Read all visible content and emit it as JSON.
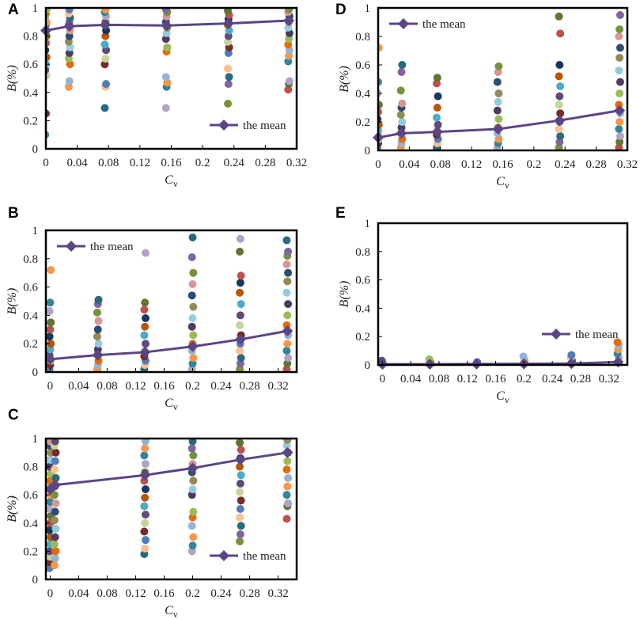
{
  "colors": {
    "mean_line": "#5b4585",
    "frame": "#000000",
    "palette": [
      "#4f7dbb",
      "#c0504d",
      "#9bbb59",
      "#8064a2",
      "#4bacc6",
      "#f79646",
      "#2c4d75",
      "#772c2a",
      "#5f7530",
      "#4d3b62",
      "#276a7c",
      "#b65708",
      "#95b3d7",
      "#d99694",
      "#c3d69b",
      "#b3a2c7",
      "#93cddd",
      "#fac090",
      "#17375e",
      "#e46c0a",
      "#76923c",
      "#604a7b",
      "#31859c",
      "#948a54"
    ]
  },
  "chart_data": [
    {
      "panel": "A",
      "type": "scatter",
      "xlabel_main": "C",
      "xlabel_sub": "v",
      "ylabel": "B(%)",
      "xlim": [
        0,
        0.32
      ],
      "ylim": [
        0,
        1
      ],
      "xticks": [
        "0",
        "0.04",
        "0.08",
        "0.12",
        "0.16",
        "0.2",
        "0.24",
        "0.28",
        "0.32"
      ],
      "yticks": [
        "0",
        "0.2",
        "0.4",
        "0.6",
        "0.8",
        "1"
      ],
      "legend": "the mean",
      "legend_position": "lower-right",
      "mean_x": [
        0,
        0.03,
        0.076,
        0.154,
        0.233,
        0.31
      ],
      "mean_y": [
        0.84,
        0.87,
        0.88,
        0.875,
        0.89,
        0.91
      ],
      "point_groups": [
        {
          "x": 0,
          "y": [
            0.1,
            0.25,
            0.52,
            0.56,
            0.6,
            0.65,
            0.7,
            0.75,
            0.8,
            0.85,
            0.88,
            0.9,
            0.93,
            0.96,
            0.99
          ]
        },
        {
          "x": 0.03,
          "y": [
            0.44,
            0.48,
            0.6,
            0.64,
            0.68,
            0.72,
            0.76,
            0.8,
            0.84,
            0.88,
            0.9,
            0.93,
            0.96,
            0.99
          ]
        },
        {
          "x": 0.076,
          "y": [
            0.29,
            0.44,
            0.46,
            0.6,
            0.64,
            0.7,
            0.74,
            0.8,
            0.84,
            0.88,
            0.9,
            0.94,
            0.97,
            0.99
          ]
        },
        {
          "x": 0.154,
          "y": [
            0.29,
            0.44,
            0.47,
            0.51,
            0.69,
            0.72,
            0.78,
            0.82,
            0.86,
            0.9,
            0.94,
            0.97,
            0.99
          ]
        },
        {
          "x": 0.233,
          "y": [
            0.32,
            0.46,
            0.51,
            0.57,
            0.68,
            0.72,
            0.76,
            0.8,
            0.84,
            0.88,
            0.92,
            0.95,
            0.98
          ]
        },
        {
          "x": 0.31,
          "y": [
            0.42,
            0.46,
            0.48,
            0.62,
            0.66,
            0.7,
            0.74,
            0.78,
            0.82,
            0.86,
            0.9,
            0.94,
            0.97,
            0.99
          ]
        }
      ]
    },
    {
      "panel": "D",
      "type": "scatter",
      "xlabel_main": "C",
      "xlabel_sub": "v",
      "ylabel": "B(%)",
      "xlim": [
        0,
        0.32
      ],
      "ylim": [
        0,
        1
      ],
      "xticks": [
        "0",
        "0.04",
        "0.08",
        "0.12",
        "0.16",
        "0.2",
        "0.24",
        "0.28",
        "0.32"
      ],
      "yticks": [
        "0",
        "0.2",
        "0.4",
        "0.6",
        "0.8",
        "1"
      ],
      "legend": "the mean",
      "legend_position": "top-left",
      "mean_x": [
        0,
        0.03,
        0.076,
        0.154,
        0.233,
        0.31
      ],
      "mean_y": [
        0.09,
        0.12,
        0.13,
        0.15,
        0.21,
        0.28
      ],
      "point_groups": [
        {
          "x": 0,
          "y": [
            0.02,
            0.05,
            0.08,
            0.11,
            0.14,
            0.18,
            0.22,
            0.27,
            0.32,
            0.4,
            0.48,
            0.72
          ]
        },
        {
          "x": 0.03,
          "y": [
            0.02,
            0.05,
            0.08,
            0.12,
            0.16,
            0.2,
            0.25,
            0.3,
            0.33,
            0.42,
            0.55,
            0.6
          ]
        },
        {
          "x": 0.076,
          "y": [
            0.02,
            0.05,
            0.08,
            0.11,
            0.14,
            0.18,
            0.23,
            0.3,
            0.38,
            0.47,
            0.51
          ]
        },
        {
          "x": 0.154,
          "y": [
            0.02,
            0.05,
            0.08,
            0.12,
            0.16,
            0.22,
            0.28,
            0.34,
            0.4,
            0.48,
            0.55,
            0.59
          ]
        },
        {
          "x": 0.233,
          "y": [
            0.02,
            0.06,
            0.1,
            0.15,
            0.2,
            0.26,
            0.32,
            0.38,
            0.45,
            0.52,
            0.6,
            0.82,
            0.94
          ]
        },
        {
          "x": 0.31,
          "y": [
            0.02,
            0.06,
            0.1,
            0.15,
            0.2,
            0.26,
            0.32,
            0.4,
            0.48,
            0.56,
            0.65,
            0.72,
            0.8,
            0.85,
            0.95
          ]
        }
      ]
    },
    {
      "panel": "B",
      "type": "scatter",
      "xlabel_main": "C",
      "xlabel_sub": "v",
      "ylabel": "B(%)",
      "xlim": [
        -0.006,
        0.346
      ],
      "ylim": [
        0,
        1
      ],
      "xticks_data": [
        0,
        0.04,
        0.08,
        0.12,
        0.16,
        0.2,
        0.24,
        0.28,
        0.32
      ],
      "xticks": [
        "0",
        "0.04",
        "0.08",
        "0.12",
        "0.16",
        "0.2",
        "0.24",
        "0.28",
        "0.32"
      ],
      "yticks": [
        "0",
        "0.2",
        "0.4",
        "0.6",
        "0.8",
        "1"
      ],
      "legend": "the mean",
      "legend_position": "top-left",
      "mean_x": [
        0,
        0.067,
        0.133,
        0.2,
        0.267,
        0.333
      ],
      "mean_y": [
        0.09,
        0.12,
        0.14,
        0.18,
        0.23,
        0.29
      ],
      "point_groups": [
        {
          "x": 0,
          "y": [
            0.02,
            0.05,
            0.08,
            0.12,
            0.16,
            0.2,
            0.25,
            0.3,
            0.35,
            0.43,
            0.49,
            0.72
          ]
        },
        {
          "x": 0.067,
          "y": [
            0.02,
            0.05,
            0.08,
            0.12,
            0.16,
            0.2,
            0.25,
            0.3,
            0.36,
            0.42,
            0.48,
            0.51
          ]
        },
        {
          "x": 0.133,
          "y": [
            0.02,
            0.05,
            0.08,
            0.11,
            0.15,
            0.2,
            0.26,
            0.32,
            0.38,
            0.44,
            0.49,
            0.84
          ]
        },
        {
          "x": 0.2,
          "y": [
            0.02,
            0.06,
            0.1,
            0.15,
            0.2,
            0.26,
            0.32,
            0.38,
            0.46,
            0.54,
            0.62,
            0.7,
            0.81,
            0.95
          ]
        },
        {
          "x": 0.267,
          "y": [
            0.02,
            0.06,
            0.1,
            0.15,
            0.2,
            0.26,
            0.33,
            0.4,
            0.48,
            0.56,
            0.63,
            0.68,
            0.85,
            0.94
          ]
        },
        {
          "x": 0.333,
          "y": [
            0.02,
            0.06,
            0.1,
            0.15,
            0.2,
            0.26,
            0.33,
            0.4,
            0.48,
            0.56,
            0.64,
            0.7,
            0.76,
            0.82,
            0.85,
            0.93
          ]
        }
      ]
    },
    {
      "panel": "E",
      "type": "scatter",
      "xlabel_main": "C",
      "xlabel_sub": "v",
      "ylabel": "B(%)",
      "xlim": [
        -0.006,
        0.346
      ],
      "ylim": [
        0,
        1
      ],
      "xticks_data": [
        0,
        0.04,
        0.08,
        0.12,
        0.16,
        0.2,
        0.24,
        0.28,
        0.32
      ],
      "xticks": [
        "0",
        "0.04",
        "0.08",
        "0.12",
        "0.16",
        "0.2",
        "0.24",
        "0.28",
        "0.32"
      ],
      "yticks": [
        "0",
        "0.2",
        "0.4",
        "0.6",
        "0.8",
        "1"
      ],
      "legend": "the mean",
      "legend_position": "right",
      "mean_x": [
        0,
        0.067,
        0.133,
        0.2,
        0.267,
        0.333
      ],
      "mean_y": [
        0.005,
        0.005,
        0.006,
        0.008,
        0.01,
        0.02
      ],
      "point_groups": [
        {
          "x": 0,
          "y": [
            0,
            0.01,
            0.02,
            0.03
          ]
        },
        {
          "x": 0.067,
          "y": [
            0,
            0.01,
            0.02,
            0.04
          ]
        },
        {
          "x": 0.133,
          "y": [
            0,
            0.01,
            0.02
          ]
        },
        {
          "x": 0.2,
          "y": [
            0,
            0.01,
            0.03,
            0.06
          ]
        },
        {
          "x": 0.267,
          "y": [
            0,
            0.01,
            0.03,
            0.05,
            0.07
          ]
        },
        {
          "x": 0.333,
          "y": [
            0,
            0.02,
            0.05,
            0.08,
            0.11,
            0.14,
            0.16
          ]
        }
      ]
    },
    {
      "panel": "C",
      "type": "scatter",
      "xlabel_main": "C",
      "xlabel_sub": "v",
      "ylabel": "B(%)",
      "xlim": [
        -0.006,
        0.346
      ],
      "ylim": [
        0,
        1
      ],
      "xticks_data": [
        0,
        0.04,
        0.08,
        0.12,
        0.16,
        0.2,
        0.24,
        0.28,
        0.32
      ],
      "xticks": [
        "0",
        "0.04",
        "0.08",
        "0.12",
        "0.16",
        "0.2",
        "0.24",
        "0.28",
        "0.32"
      ],
      "yticks": [
        "0",
        "0.2",
        "0.4",
        "0.6",
        "0.8",
        "1"
      ],
      "legend": "the mean",
      "legend_position": "lower-right",
      "mean_x": [
        0,
        0.007,
        0.133,
        0.2,
        0.267,
        0.333
      ],
      "mean_y": [
        0.64,
        0.67,
        0.74,
        0.79,
        0.85,
        0.9
      ],
      "point_groups": [
        {
          "x": 0,
          "y": [
            0.08,
            0.12,
            0.16,
            0.2,
            0.25,
            0.3,
            0.35,
            0.4,
            0.45,
            0.5,
            0.55,
            0.6,
            0.65,
            0.7,
            0.75,
            0.8,
            0.85,
            0.9,
            0.95,
            0.98
          ]
        },
        {
          "x": 0.007,
          "y": [
            0.1,
            0.15,
            0.2,
            0.25,
            0.3,
            0.36,
            0.42,
            0.48,
            0.54,
            0.6,
            0.66,
            0.72,
            0.78,
            0.84,
            0.9,
            0.95,
            0.98
          ]
        },
        {
          "x": 0.133,
          "y": [
            0.18,
            0.22,
            0.28,
            0.34,
            0.4,
            0.46,
            0.52,
            0.58,
            0.64,
            0.7,
            0.76,
            0.82,
            0.88,
            0.93,
            0.98
          ]
        },
        {
          "x": 0.2,
          "y": [
            0.2,
            0.24,
            0.3,
            0.38,
            0.44,
            0.48,
            0.6,
            0.64,
            0.7,
            0.76,
            0.82,
            0.88,
            0.93,
            0.98
          ]
        },
        {
          "x": 0.267,
          "y": [
            0.27,
            0.32,
            0.38,
            0.44,
            0.5,
            0.56,
            0.62,
            0.68,
            0.74,
            0.8,
            0.86,
            0.92,
            0.97
          ]
        },
        {
          "x": 0.333,
          "y": [
            0.43,
            0.52,
            0.54,
            0.6,
            0.66,
            0.72,
            0.78,
            0.84,
            0.9,
            0.95,
            0.99
          ]
        }
      ]
    }
  ]
}
